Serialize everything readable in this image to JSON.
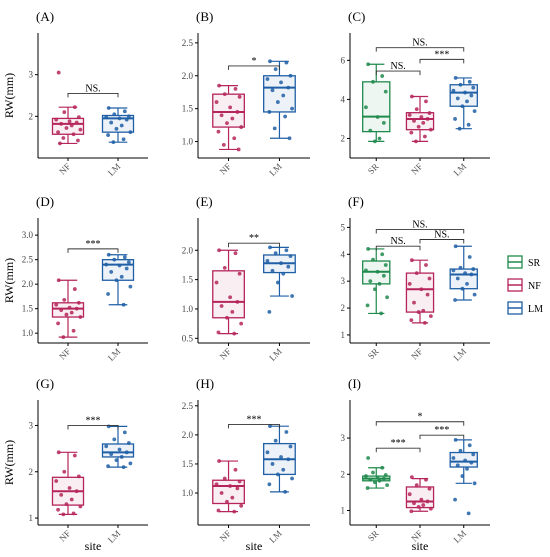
{
  "figure": {
    "ylabel": "RW(mm)",
    "xlabel": "site",
    "colors": {
      "SR": "#1f8a4c",
      "NF": "#b5245a",
      "LM": "#1f5fa6"
    }
  },
  "legend": {
    "placement": "right",
    "entries": [
      {
        "key": "SR",
        "label": "SR"
      },
      {
        "key": "NF",
        "label": "NF"
      },
      {
        "key": "LM",
        "label": "LM"
      }
    ]
  },
  "chart_data": [
    {
      "panel": "(A)",
      "type": "box",
      "xlabel": "",
      "ylabel": "RW(mm)",
      "ylim": [
        1.0,
        4.0
      ],
      "yticks": [
        2,
        3
      ],
      "ytick_labels": [
        "2",
        "3"
      ],
      "categories": [
        "NF",
        "LM"
      ],
      "boxes": [
        {
          "group": "NF",
          "min": 1.35,
          "q1": 1.57,
          "median": 1.82,
          "q3": 1.95,
          "max": 2.22,
          "points": [
            3.05,
            2.22,
            2.1,
            1.98,
            1.92,
            1.88,
            1.85,
            1.82,
            1.78,
            1.72,
            1.68,
            1.62,
            1.57,
            1.48,
            1.42,
            1.35
          ]
        },
        {
          "group": "LM",
          "min": 1.38,
          "q1": 1.62,
          "median": 1.95,
          "q3": 2.02,
          "max": 2.2,
          "points": [
            2.2,
            2.12,
            2.05,
            2.0,
            1.98,
            1.95,
            1.92,
            1.85,
            1.78,
            1.7,
            1.62,
            1.55,
            1.45,
            1.38
          ]
        }
      ],
      "comparisons": [
        {
          "from": "NF",
          "to": "LM",
          "label": "NS.",
          "y": 2.55
        }
      ]
    },
    {
      "panel": "(B)",
      "type": "box",
      "xlabel": "",
      "ylabel": "",
      "ylim": [
        0.75,
        2.65
      ],
      "yticks": [
        1.0,
        1.5,
        2.0,
        2.5
      ],
      "ytick_labels": [
        "1.0",
        "1.5",
        "2.0",
        "2.5"
      ],
      "categories": [
        "NF",
        "LM"
      ],
      "boxes": [
        {
          "group": "NF",
          "min": 0.88,
          "q1": 1.22,
          "median": 1.45,
          "q3": 1.72,
          "max": 1.85,
          "points": [
            1.85,
            1.8,
            1.72,
            1.68,
            1.6,
            1.52,
            1.45,
            1.4,
            1.35,
            1.28,
            1.22,
            1.15,
            1.05,
            0.95,
            0.88
          ]
        },
        {
          "group": "LM",
          "min": 1.05,
          "q1": 1.45,
          "median": 1.82,
          "q3": 2.0,
          "max": 2.22,
          "points": [
            2.22,
            2.2,
            2.1,
            2.0,
            1.95,
            1.9,
            1.82,
            1.78,
            1.7,
            1.6,
            1.5,
            1.45,
            1.38,
            1.2,
            1.05
          ]
        }
      ],
      "comparisons": [
        {
          "from": "NF",
          "to": "LM",
          "label": "*",
          "y": 2.15
        }
      ]
    },
    {
      "panel": "(C)",
      "type": "box",
      "xlabel": "",
      "ylabel": "",
      "ylim": [
        1.0,
        7.4
      ],
      "yticks": [
        2,
        4,
        6
      ],
      "ytick_labels": [
        "2",
        "4",
        "6"
      ],
      "categories": [
        "SR",
        "NF",
        "LM"
      ],
      "boxes": [
        {
          "group": "SR",
          "min": 1.85,
          "q1": 2.35,
          "median": 3.12,
          "q3": 4.9,
          "max": 5.8,
          "points": [
            5.8,
            5.2,
            4.9,
            4.4,
            3.6,
            3.1,
            2.8,
            2.4,
            2.0,
            1.85
          ]
        },
        {
          "group": "NF",
          "min": 1.85,
          "q1": 2.45,
          "median": 3.0,
          "q3": 3.32,
          "max": 4.15,
          "points": [
            4.15,
            3.9,
            3.5,
            3.3,
            3.2,
            3.1,
            3.0,
            2.9,
            2.8,
            2.6,
            2.45,
            2.3,
            2.1,
            1.85
          ]
        },
        {
          "group": "LM",
          "min": 2.5,
          "q1": 3.65,
          "median": 4.35,
          "q3": 4.75,
          "max": 5.1,
          "points": [
            5.1,
            4.9,
            4.75,
            4.6,
            4.45,
            4.35,
            4.2,
            4.05,
            3.9,
            3.65,
            3.4,
            3.0,
            2.7,
            2.5
          ]
        }
      ],
      "comparisons": [
        {
          "from": "SR",
          "to": "NF",
          "label": "NS.",
          "y": 5.45
        },
        {
          "from": "NF",
          "to": "LM",
          "label": "***",
          "y": 6.05
        },
        {
          "from": "SR",
          "to": "LM",
          "label": "NS.",
          "y": 6.65
        }
      ]
    },
    {
      "panel": "(D)",
      "type": "box",
      "xlabel": "",
      "ylabel": "RW(mm)",
      "ylim": [
        0.8,
        3.35
      ],
      "yticks": [
        1.0,
        1.5,
        2.0,
        2.5,
        3.0
      ],
      "ytick_labels": [
        "1.0",
        "1.5",
        "2.0",
        "2.5",
        "3.0"
      ],
      "categories": [
        "NF",
        "LM"
      ],
      "boxes": [
        {
          "group": "NF",
          "min": 0.92,
          "q1": 1.33,
          "median": 1.5,
          "q3": 1.62,
          "max": 2.08,
          "points": [
            2.08,
            1.9,
            1.68,
            1.62,
            1.58,
            1.52,
            1.5,
            1.47,
            1.42,
            1.38,
            1.33,
            1.2,
            1.05,
            0.92
          ]
        },
        {
          "group": "LM",
          "min": 1.58,
          "q1": 2.08,
          "median": 2.4,
          "q3": 2.5,
          "max": 2.6,
          "points": [
            2.6,
            2.55,
            2.5,
            2.45,
            2.4,
            2.38,
            2.32,
            2.25,
            2.15,
            2.08,
            1.95,
            1.8,
            1.58
          ]
        }
      ],
      "comparisons": [
        {
          "from": "NF",
          "to": "LM",
          "label": "***",
          "y": 2.72
        }
      ]
    },
    {
      "panel": "(E)",
      "type": "box",
      "xlabel": "",
      "ylabel": "",
      "ylim": [
        0.42,
        2.55
      ],
      "yticks": [
        0.5,
        1.0,
        1.5,
        2.0
      ],
      "ytick_labels": [
        "0.5",
        "1.0",
        "1.5",
        "2.0"
      ],
      "categories": [
        "NF",
        "LM"
      ],
      "boxes": [
        {
          "group": "NF",
          "min": 0.58,
          "q1": 0.85,
          "median": 1.12,
          "q3": 1.65,
          "max": 2.0,
          "points": [
            2.0,
            1.95,
            1.7,
            1.6,
            1.45,
            1.2,
            1.12,
            1.05,
            0.95,
            0.85,
            0.75,
            0.6,
            0.58
          ]
        },
        {
          "group": "LM",
          "min": 1.22,
          "q1": 1.62,
          "median": 1.78,
          "q3": 1.92,
          "max": 2.05,
          "points": [
            2.05,
            2.0,
            1.95,
            1.9,
            1.82,
            1.78,
            1.72,
            1.65,
            1.6,
            1.45,
            1.22,
            0.95
          ]
        }
      ],
      "comparisons": [
        {
          "from": "NF",
          "to": "LM",
          "label": "**",
          "y": 2.12
        }
      ]
    },
    {
      "panel": "(F)",
      "type": "box",
      "xlabel": "",
      "ylabel": "",
      "ylim": [
        0.7,
        5.35
      ],
      "yticks": [
        1,
        2,
        3,
        4,
        5
      ],
      "ytick_labels": [
        "1",
        "2",
        "3",
        "4",
        "5"
      ],
      "categories": [
        "SR",
        "NF",
        "LM"
      ],
      "boxes": [
        {
          "group": "SR",
          "min": 1.8,
          "q1": 2.9,
          "median": 3.35,
          "q3": 3.75,
          "max": 4.2,
          "points": [
            4.2,
            4.0,
            3.8,
            3.6,
            3.4,
            3.35,
            3.2,
            3.0,
            2.9,
            2.7,
            2.4,
            2.1,
            1.8
          ]
        },
        {
          "group": "NF",
          "min": 1.45,
          "q1": 1.85,
          "median": 2.7,
          "q3": 3.3,
          "max": 3.78,
          "points": [
            3.78,
            3.6,
            3.3,
            3.1,
            2.9,
            2.7,
            2.5,
            2.2,
            1.9,
            1.85,
            1.7,
            1.55,
            1.45
          ]
        },
        {
          "group": "LM",
          "min": 2.3,
          "q1": 2.72,
          "median": 3.25,
          "q3": 3.45,
          "max": 4.3,
          "points": [
            4.3,
            3.9,
            3.5,
            3.45,
            3.4,
            3.3,
            3.25,
            3.1,
            2.9,
            2.72,
            2.5,
            2.3
          ]
        }
      ],
      "comparisons": [
        {
          "from": "SR",
          "to": "NF",
          "label": "NS.",
          "y": 4.3
        },
        {
          "from": "NF",
          "to": "LM",
          "label": "NS.",
          "y": 4.55
        },
        {
          "from": "SR",
          "to": "LM",
          "label": "NS.",
          "y": 4.92
        }
      ]
    },
    {
      "panel": "(G)",
      "type": "box",
      "xlabel": "site",
      "ylabel": "RW(mm)",
      "ylim": [
        0.85,
        3.55
      ],
      "yticks": [
        1,
        2,
        3
      ],
      "ytick_labels": [
        "1",
        "2",
        "3"
      ],
      "categories": [
        "NF",
        "LM"
      ],
      "boxes": [
        {
          "group": "NF",
          "min": 1.08,
          "q1": 1.28,
          "median": 1.58,
          "q3": 1.88,
          "max": 2.42,
          "points": [
            2.42,
            2.35,
            2.0,
            1.9,
            1.8,
            1.65,
            1.58,
            1.5,
            1.4,
            1.3,
            1.25,
            1.18,
            1.1,
            1.08
          ]
        },
        {
          "group": "LM",
          "min": 2.1,
          "q1": 2.32,
          "median": 2.42,
          "q3": 2.6,
          "max": 2.98,
          "points": [
            2.98,
            2.85,
            2.7,
            2.62,
            2.55,
            2.48,
            2.42,
            2.38,
            2.32,
            2.25,
            2.18,
            2.12,
            2.1
          ]
        }
      ],
      "comparisons": [
        {
          "from": "NF",
          "to": "LM",
          "label": "***",
          "y": 3.0
        }
      ]
    },
    {
      "panel": "(H)",
      "type": "box",
      "xlabel": "site",
      "ylabel": "",
      "ylim": [
        0.45,
        2.6
      ],
      "yticks": [
        1.0,
        1.5,
        2.0,
        2.5
      ],
      "ytick_labels": [
        "1.0",
        "1.5",
        "2.0",
        "2.5"
      ],
      "categories": [
        "NF",
        "LM"
      ],
      "boxes": [
        {
          "group": "NF",
          "min": 0.68,
          "q1": 0.82,
          "median": 1.12,
          "q3": 1.22,
          "max": 1.55,
          "points": [
            1.55,
            1.4,
            1.25,
            1.2,
            1.15,
            1.12,
            1.08,
            1.0,
            0.92,
            0.85,
            0.78,
            0.7,
            0.68
          ]
        },
        {
          "group": "LM",
          "min": 1.02,
          "q1": 1.32,
          "median": 1.58,
          "q3": 1.85,
          "max": 2.15,
          "points": [
            2.15,
            2.05,
            1.9,
            1.8,
            1.7,
            1.62,
            1.58,
            1.5,
            1.4,
            1.32,
            1.25,
            1.15,
            1.02
          ]
        }
      ],
      "comparisons": [
        {
          "from": "NF",
          "to": "LM",
          "label": "***",
          "y": 2.18
        }
      ]
    },
    {
      "panel": "(I)",
      "type": "box",
      "xlabel": "site",
      "ylabel": "",
      "ylim": [
        0.6,
        4.05
      ],
      "yticks": [
        1,
        2,
        3
      ],
      "ytick_labels": [
        "1",
        "2",
        "3"
      ],
      "categories": [
        "SR",
        "NF",
        "LM"
      ],
      "boxes": [
        {
          "group": "SR",
          "min": 1.62,
          "q1": 1.82,
          "median": 1.88,
          "q3": 1.95,
          "max": 2.18,
          "points": [
            2.45,
            2.18,
            2.05,
            1.98,
            1.95,
            1.9,
            1.88,
            1.85,
            1.82,
            1.78,
            1.7,
            1.62
          ]
        },
        {
          "group": "NF",
          "min": 0.98,
          "q1": 1.08,
          "median": 1.25,
          "q3": 1.65,
          "max": 1.88,
          "points": [
            1.92,
            1.85,
            1.7,
            1.6,
            1.45,
            1.3,
            1.25,
            1.2,
            1.15,
            1.1,
            1.05,
            0.98
          ]
        },
        {
          "group": "LM",
          "min": 1.75,
          "q1": 2.2,
          "median": 2.35,
          "q3": 2.6,
          "max": 2.95,
          "points": [
            2.95,
            2.8,
            2.65,
            2.55,
            2.45,
            2.38,
            2.32,
            2.25,
            2.15,
            1.95,
            1.75,
            1.3,
            0.92
          ]
        }
      ],
      "comparisons": [
        {
          "from": "SR",
          "to": "NF",
          "label": "***",
          "y": 2.72
        },
        {
          "from": "NF",
          "to": "LM",
          "label": "***",
          "y": 3.08
        },
        {
          "from": "SR",
          "to": "LM",
          "label": "*",
          "y": 3.45
        }
      ]
    }
  ]
}
